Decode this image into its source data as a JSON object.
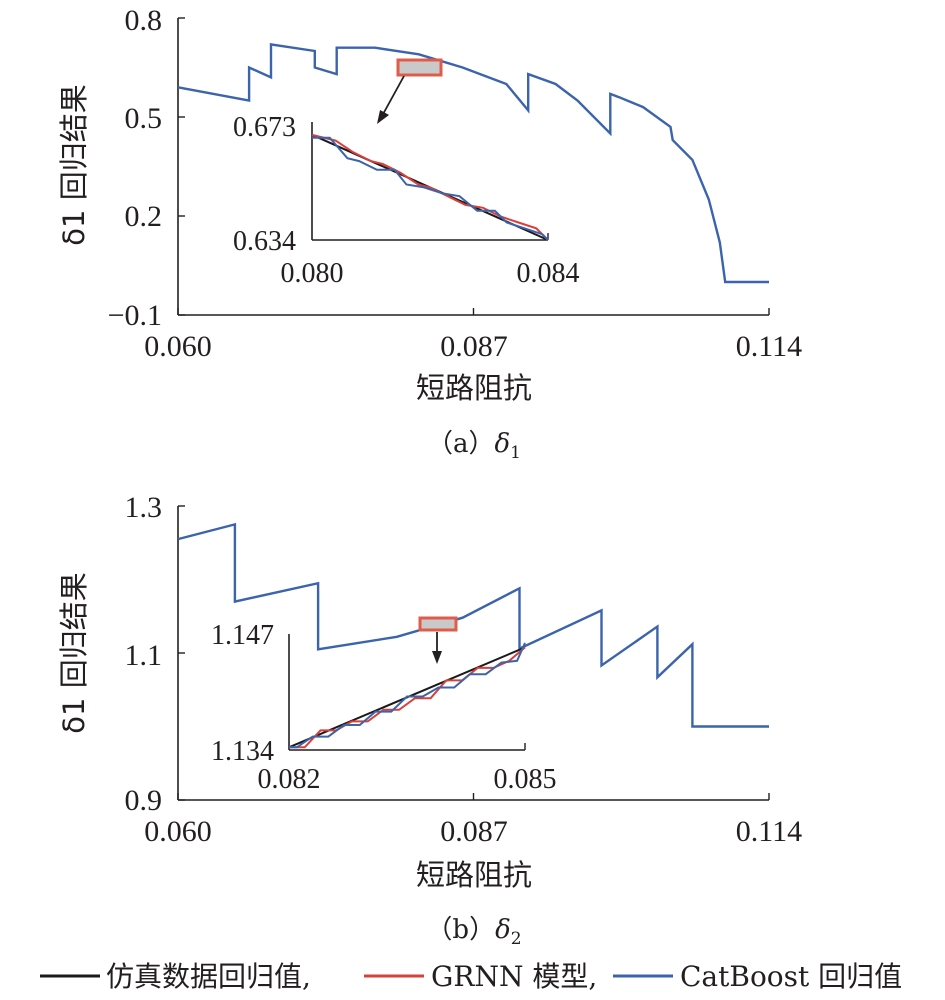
{
  "legend": [
    {
      "label": "仿真数据回归值,",
      "color": "#1a1a1a"
    },
    {
      "label": "GRNN 模型,",
      "color": "#d9403a"
    },
    {
      "label": "CatBoost 回归值",
      "color": "#3b64ad"
    }
  ],
  "chart_data": [
    {
      "type": "line",
      "caption": "（a）δ1",
      "ylabel": "δ1 回归结果",
      "xlabel": "短路阻抗",
      "xlim": [
        0.06,
        0.114
      ],
      "ylim": [
        -0.1,
        0.8
      ],
      "xticks": [
        "0.060",
        "0.087",
        "0.114"
      ],
      "yticks": [
        "0.8",
        "0.5",
        "0.2",
        "−0.1"
      ],
      "series": [
        {
          "color": "#3b64ad",
          "x": [
            0.06,
            0.0665,
            0.0665,
            0.0685,
            0.0685,
            0.0725,
            0.0725,
            0.0745,
            0.0745,
            0.078,
            0.082,
            0.086,
            0.09,
            0.092,
            0.092,
            0.0945,
            0.0965,
            0.0995,
            0.0995,
            0.1003,
            0.1025,
            0.105,
            0.1052,
            0.107,
            0.1085,
            0.1095,
            0.11,
            0.113,
            0.114
          ],
          "y": [
            0.59,
            0.55,
            0.65,
            0.62,
            0.72,
            0.7,
            0.65,
            0.63,
            0.71,
            0.71,
            0.69,
            0.65,
            0.6,
            0.52,
            0.63,
            0.6,
            0.55,
            0.45,
            0.57,
            0.56,
            0.53,
            0.47,
            0.43,
            0.37,
            0.25,
            0.12,
            0.0,
            0.0,
            0.0
          ]
        }
      ],
      "inset": {
        "xlim": [
          0.08,
          0.084
        ],
        "ylim": [
          0.634,
          0.673
        ],
        "xticks": [
          "0.080",
          "0.084"
        ],
        "yticks": [
          "0.673",
          "0.634"
        ],
        "sim": {
          "x": [
            0.08,
            0.084
          ],
          "y": [
            0.67,
            0.634
          ]
        },
        "grnn": {
          "x": [
            0.08,
            0.0804,
            0.0807,
            0.081,
            0.0812,
            0.0815,
            0.0818,
            0.082,
            0.0823,
            0.0826,
            0.0829,
            0.0832,
            0.0835,
            0.0838,
            0.084
          ],
          "y": [
            0.67,
            0.668,
            0.664,
            0.661,
            0.66,
            0.657,
            0.653,
            0.652,
            0.649,
            0.646,
            0.645,
            0.642,
            0.64,
            0.638,
            0.634
          ]
        },
        "catboost": {
          "x": [
            0.08,
            0.0803,
            0.0806,
            0.0808,
            0.0811,
            0.0814,
            0.0816,
            0.0819,
            0.0822,
            0.0825,
            0.0828,
            0.0831,
            0.0833,
            0.0836,
            0.0839,
            0.084
          ],
          "y": [
            0.669,
            0.669,
            0.662,
            0.661,
            0.658,
            0.658,
            0.653,
            0.652,
            0.65,
            0.649,
            0.644,
            0.644,
            0.64,
            0.638,
            0.636,
            0.634
          ]
        }
      }
    },
    {
      "type": "line",
      "caption": "（b）δ2",
      "ylabel": "δ1 回归结果",
      "xlabel": "短路阻抗",
      "xlim": [
        0.06,
        0.114
      ],
      "ylim": [
        0.9,
        1.3
      ],
      "xticks": [
        "0.060",
        "0.087",
        "0.114"
      ],
      "yticks": [
        "1.3",
        "1.1",
        "0.9"
      ],
      "series": [
        {
          "color": "#3b64ad",
          "x": [
            0.06,
            0.0652,
            0.0652,
            0.0728,
            0.0728,
            0.08,
            0.086,
            0.0912,
            0.0912,
            0.0987,
            0.0987,
            0.1038,
            0.1038,
            0.107,
            0.107,
            0.1095,
            0.114
          ],
          "y": [
            1.255,
            1.275,
            1.17,
            1.195,
            1.105,
            1.122,
            1.148,
            1.188,
            1.106,
            1.158,
            1.083,
            1.136,
            1.067,
            1.112,
            1.0,
            1.0,
            1.0
          ]
        }
      ],
      "inset": {
        "xlim": [
          0.082,
          0.085
        ],
        "ylim": [
          1.134,
          1.147
        ],
        "xticks": [
          "0.082",
          "0.085"
        ],
        "yticks": [
          "1.147",
          "1.134"
        ],
        "sim": {
          "x": [
            0.082,
            0.085
          ],
          "y": [
            1.1343,
            1.1455
          ]
        },
        "grnn": {
          "x": [
            0.082,
            0.0822,
            0.0824,
            0.0826,
            0.0828,
            0.083,
            0.0832,
            0.0834,
            0.0836,
            0.0838,
            0.084,
            0.0842,
            0.0844,
            0.0846,
            0.0848,
            0.085
          ],
          "y": [
            1.1343,
            1.1343,
            1.1362,
            1.1362,
            1.1372,
            1.1372,
            1.1385,
            1.1385,
            1.1398,
            1.1398,
            1.1418,
            1.1418,
            1.1432,
            1.1432,
            1.144,
            1.1455
          ]
        },
        "catboost": {
          "x": [
            0.082,
            0.0821,
            0.0823,
            0.0825,
            0.0827,
            0.0829,
            0.0831,
            0.0833,
            0.0835,
            0.0837,
            0.0839,
            0.0841,
            0.0843,
            0.0845,
            0.0847,
            0.0849,
            0.085
          ],
          "y": [
            1.1343,
            1.1343,
            1.1355,
            1.1355,
            1.1368,
            1.1368,
            1.1383,
            1.1383,
            1.14,
            1.14,
            1.141,
            1.141,
            1.1425,
            1.1425,
            1.1438,
            1.144,
            1.146
          ]
        }
      }
    }
  ]
}
